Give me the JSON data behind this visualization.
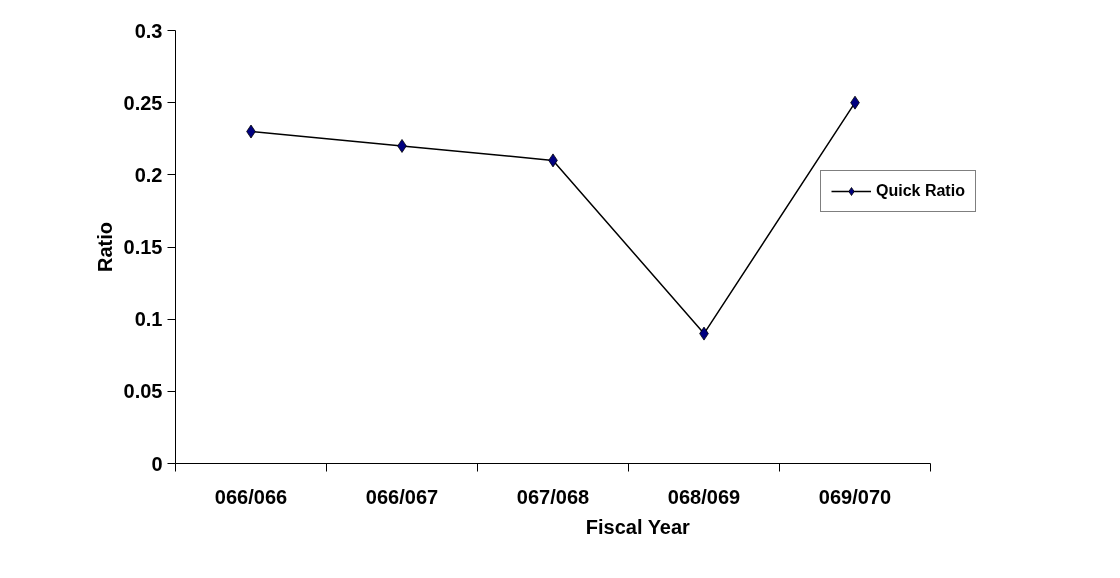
{
  "chart_data": {
    "type": "line",
    "xlabel": "Fiscal Year",
    "ylabel": "Ratio",
    "categories": [
      "066/066",
      "066/067",
      "067/068",
      "068/069",
      "069/070"
    ],
    "series": [
      {
        "name": "Quick Ratio",
        "color": "#000080",
        "values": [
          0.23,
          0.22,
          0.21,
          0.09,
          0.25
        ]
      }
    ],
    "ylim": [
      0,
      0.3
    ],
    "yticks": [
      0,
      0.05,
      0.1,
      0.15,
      0.2,
      0.25,
      0.3
    ],
    "grid": false,
    "legend": "right",
    "marker": "diamond",
    "line_style": "solid"
  }
}
